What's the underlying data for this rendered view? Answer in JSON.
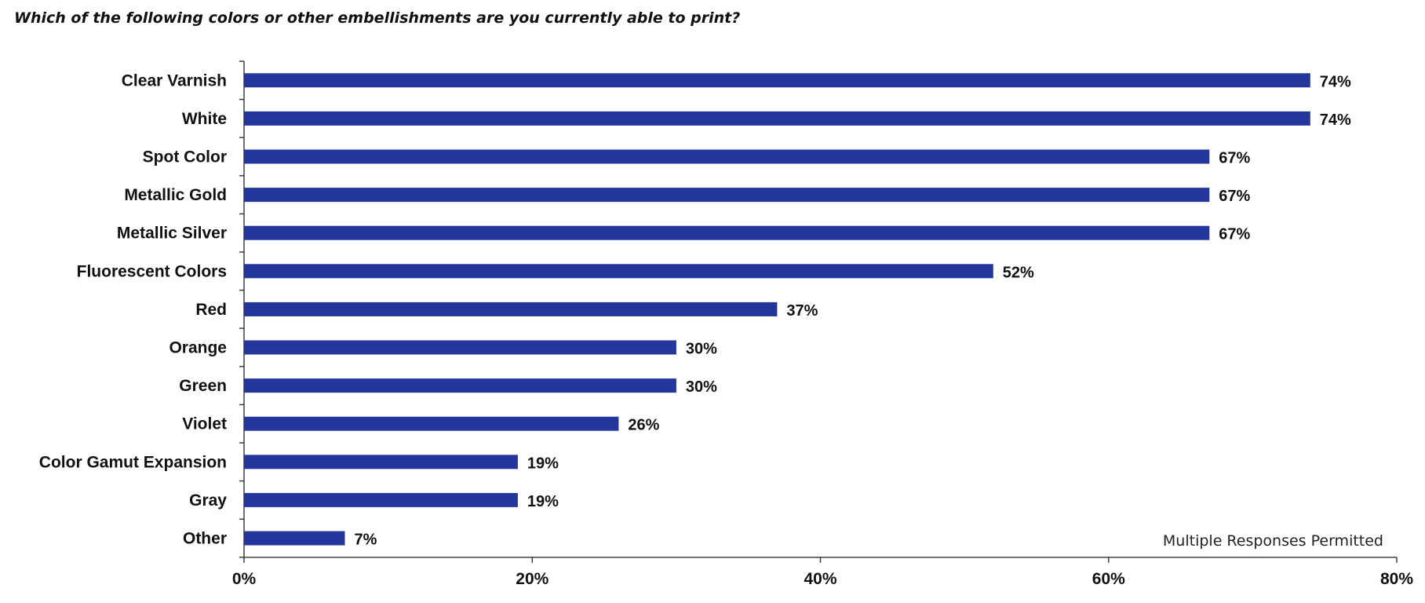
{
  "chart_data": {
    "type": "bar",
    "orientation": "horizontal",
    "title": "Which of the following colors or other embellishments are you currently able to print?",
    "categories": [
      "Clear Varnish",
      "White",
      "Spot Color",
      "Metallic Gold",
      "Metallic Silver",
      "Fluorescent Colors",
      "Red",
      "Orange",
      "Green",
      "Violet",
      "Color Gamut Expansion",
      "Gray",
      "Other"
    ],
    "values": [
      74,
      74,
      67,
      67,
      67,
      52,
      37,
      30,
      30,
      26,
      19,
      19,
      7
    ],
    "value_labels": [
      "74%",
      "74%",
      "67%",
      "67%",
      "67%",
      "52%",
      "37%",
      "30%",
      "30%",
      "26%",
      "19%",
      "19%",
      "7%"
    ],
    "xlim": [
      0,
      80
    ],
    "x_ticks": [
      0,
      20,
      40,
      60,
      80
    ],
    "x_tick_labels": [
      "0%",
      "20%",
      "40%",
      "60%",
      "80%"
    ],
    "xlabel": "",
    "ylabel": "",
    "grid": false,
    "annotation": "Multiple Responses Permitted",
    "bar_color": "#24369B"
  }
}
